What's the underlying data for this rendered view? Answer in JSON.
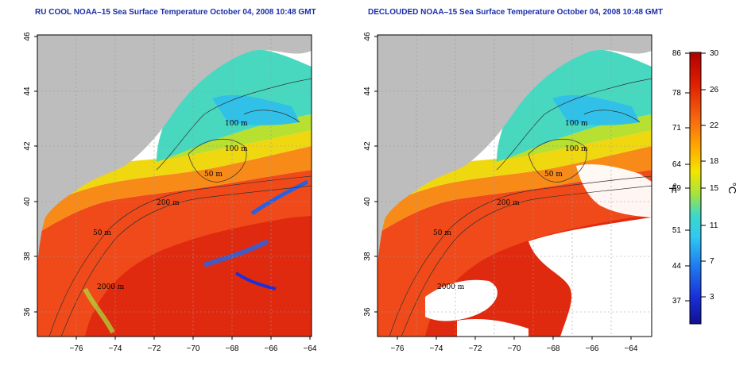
{
  "panels": [
    {
      "title": "RU COOL NOAA–15 Sea Surface Temperature October 04, 2008 10:48 GMT",
      "contour_labels": [
        "100 m",
        "100 m",
        "50 m",
        "200 m",
        "50 m",
        "2000 m"
      ]
    },
    {
      "title": "DECLOUDED NOAA–15 Sea Surface Temperature October 04, 2008 10:48 GMT",
      "contour_labels": [
        "100 m",
        "100 m",
        "50 m",
        "200 m",
        "50 m",
        "2000 m"
      ]
    }
  ],
  "axes": {
    "x_ticks": [
      "−76",
      "−74",
      "−72",
      "−70",
      "−68",
      "−66",
      "−64"
    ],
    "y_ticks": [
      "46",
      "44",
      "42",
      "40",
      "38",
      "36"
    ],
    "lon_range": [
      -77,
      -63
    ],
    "lat_range": [
      35,
      46
    ]
  },
  "colorbar": {
    "fahrenheit_label": "°F",
    "celsius_label": "°C",
    "fahrenheit_ticks": [
      "86",
      "78",
      "71",
      "64",
      "59",
      "51",
      "44",
      "37"
    ],
    "celsius_ticks": [
      "30",
      "26",
      "22",
      "18",
      "15",
      "11",
      "7",
      "3"
    ],
    "colors": [
      "#d40000",
      "#f03010",
      "#f86a10",
      "#ffb000",
      "#f2e600",
      "#a8e23c",
      "#3ed8c8",
      "#30c8f0",
      "#2080f0",
      "#1a30d8",
      "#101090"
    ]
  },
  "colors": {
    "land": "#bdbdbd",
    "cloud": "#ffffff",
    "title": "#1a2ea8"
  }
}
